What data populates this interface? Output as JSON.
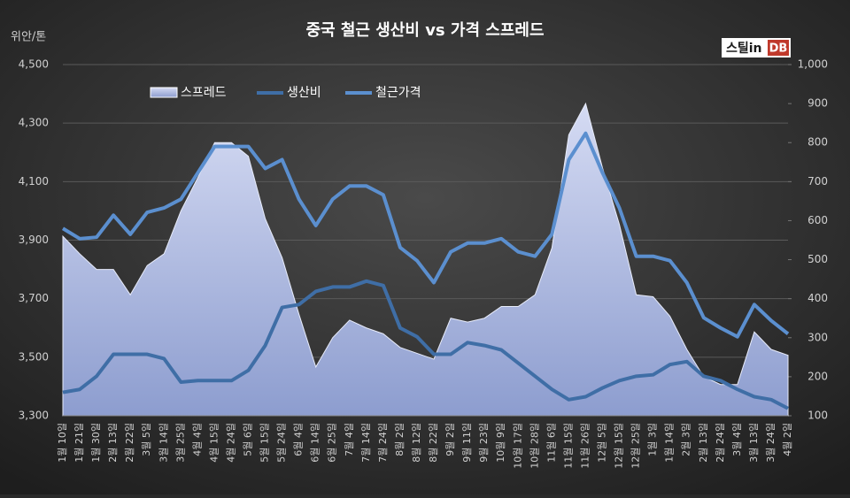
{
  "chart_data": {
    "type": "line",
    "title": "중국 철근 생산비 vs 가격 스프레드",
    "y_label": "위안/톤",
    "logo": {
      "left": "스틸in",
      "right": "DB"
    },
    "categories": [
      "1월 10일",
      "1월 21일",
      "1월 30일",
      "2월 13일",
      "2월 22일",
      "3월 5일",
      "3월 14일",
      "3월 25일",
      "4월 4일",
      "4월 15일",
      "4월 24일",
      "5월 6일",
      "5월 15일",
      "5월 24일",
      "6월 4일",
      "6월 14일",
      "6월 25일",
      "7월 4일",
      "7월 14일",
      "7월 24일",
      "8월 2일",
      "8월 12일",
      "8월 22일",
      "9월 2일",
      "9월 11일",
      "9월 23일",
      "10월 9일",
      "10월 17일",
      "10월 28일",
      "11월 6일",
      "11월 15일",
      "11월 26일",
      "12월 5일",
      "12월 15일",
      "12월 25일",
      "1월 3일",
      "1월 14일",
      "2월 3일",
      "2월 13일",
      "2월 24일",
      "3월 4일",
      "3월 13일",
      "3월 24일",
      "4월 2일"
    ],
    "series": [
      {
        "name": "스프레드",
        "style": "area",
        "axis": "y2",
        "color": "#a9b6e2",
        "values": [
          560,
          515,
          475,
          475,
          410,
          485,
          515,
          625,
          710,
          800,
          800,
          765,
          605,
          505,
          360,
          225,
          300,
          345,
          325,
          310,
          275,
          260,
          245,
          350,
          340,
          350,
          380,
          380,
          410,
          530,
          820,
          900,
          735,
          590,
          410,
          405,
          355,
          270,
          200,
          180,
          180,
          315,
          270,
          255
        ]
      },
      {
        "name": "생산비",
        "style": "line",
        "color": "#3f6ea6",
        "values": [
          3380,
          3390,
          3435,
          3510,
          3510,
          3510,
          3495,
          3415,
          3420,
          3420,
          3420,
          3455,
          3540,
          3670,
          3680,
          3725,
          3740,
          3740,
          3760,
          3745,
          3600,
          3570,
          3510,
          3510,
          3550,
          3540,
          3525,
          3480,
          3435,
          3390,
          3355,
          3365,
          3395,
          3420,
          3435,
          3440,
          3475,
          3485,
          3435,
          3420,
          3390,
          3365,
          3355,
          3325
        ]
      },
      {
        "name": "철근가격",
        "style": "line",
        "color": "#5b8fcf",
        "values": [
          3940,
          3905,
          3910,
          3985,
          3920,
          3995,
          4010,
          4040,
          4130,
          4220,
          4220,
          4220,
          4145,
          4175,
          4040,
          3950,
          4040,
          4085,
          4085,
          4055,
          3875,
          3830,
          3755,
          3860,
          3890,
          3890,
          3905,
          3860,
          3845,
          3920,
          4175,
          4265,
          4130,
          4010,
          3845,
          3845,
          3830,
          3755,
          3635,
          3600,
          3570,
          3680,
          3625,
          3580
        ]
      }
    ],
    "ylim": [
      3300,
      4500
    ],
    "yticks": [
      {
        "value": 3300,
        "label": "3,300"
      },
      {
        "value": 3500,
        "label": "3,500"
      },
      {
        "value": 3700,
        "label": "3,700"
      },
      {
        "value": 3900,
        "label": "3,900"
      },
      {
        "value": 4100,
        "label": "4,100"
      },
      {
        "value": 4300,
        "label": "4,300"
      },
      {
        "value": 4500,
        "label": "4,500"
      }
    ],
    "y2lim": [
      100,
      1000
    ],
    "y2ticks": [
      100,
      200,
      300,
      400,
      500,
      600,
      700,
      800,
      900,
      {
        "value": 1000,
        "label": "1,000"
      }
    ],
    "grid": true
  }
}
